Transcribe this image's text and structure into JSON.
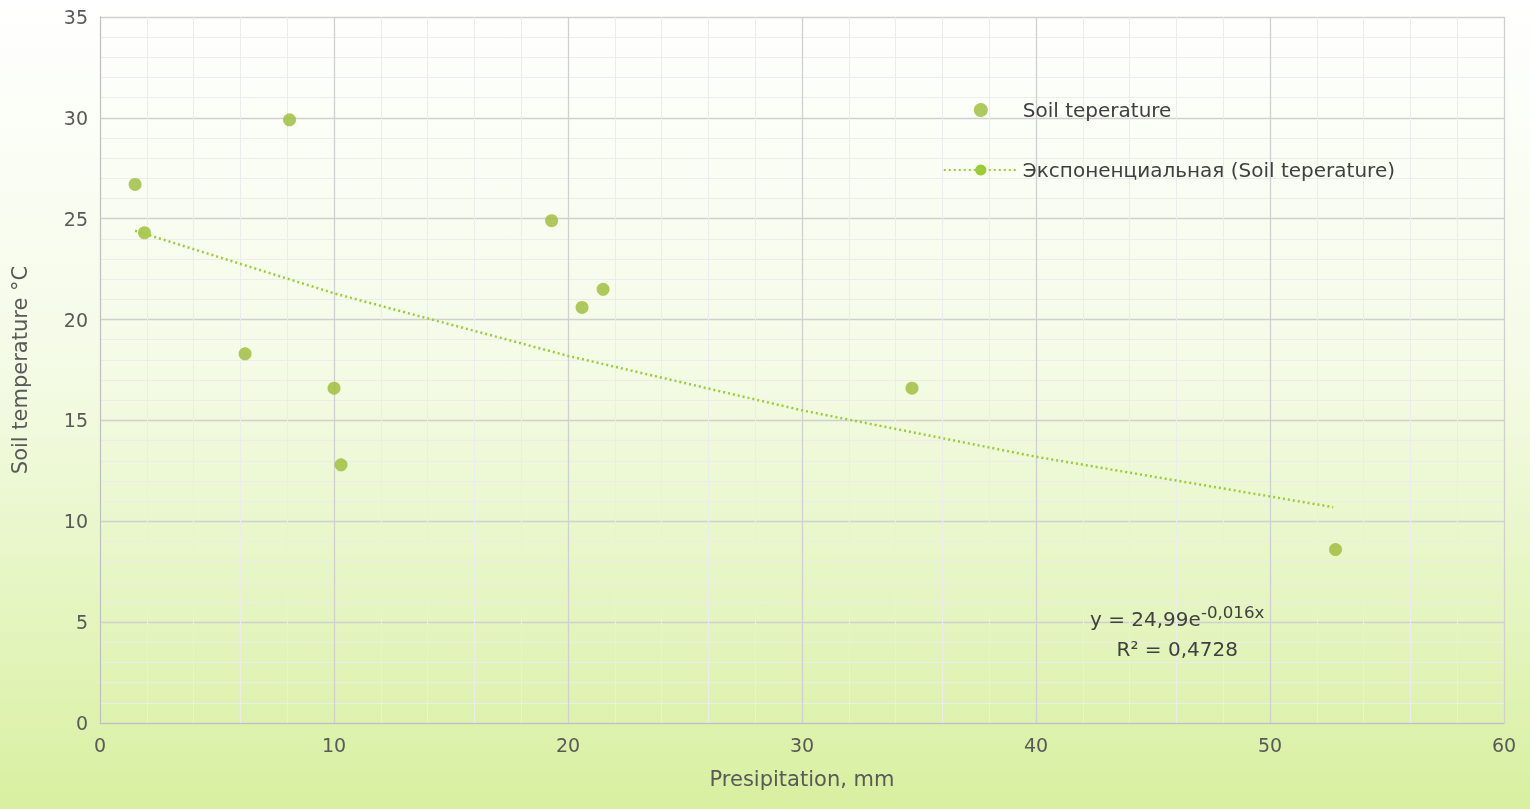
{
  "chart_data": {
    "type": "scatter",
    "xlabel": "Presipitation, mm",
    "ylabel": "Soil temperature °C",
    "xlim": [
      0,
      60
    ],
    "xticks": [
      0,
      10,
      20,
      30,
      40,
      50,
      60
    ],
    "ylim": [
      0,
      35
    ],
    "yticks": [
      0,
      5,
      10,
      15,
      20,
      25,
      30,
      35
    ],
    "grid": true,
    "legend": "top right",
    "marker": "circle",
    "series": [
      {
        "name": "Soil teperature",
        "color": "#9bbb35",
        "x": [
          1.5,
          1.9,
          6.2,
          8.1,
          10.0,
          10.3,
          19.3,
          20.6,
          21.5,
          34.7,
          52.8
        ],
        "values": [
          26.7,
          24.3,
          18.3,
          29.9,
          16.6,
          12.8,
          24.9,
          20.6,
          21.5,
          16.6,
          8.6
        ]
      },
      {
        "name": "Экспоненциальная (Soil teperature)",
        "type": "line",
        "color": "#9acd32",
        "line_style": "dotted",
        "marker": "none",
        "x": [
          1.5,
          10,
          20,
          30,
          40,
          52.7
        ],
        "values": [
          24.4,
          21.3,
          18.2,
          15.5,
          13.2,
          10.7
        ]
      }
    ],
    "annotations": [
      "y = 24,99e$^{-0,016x}$",
      "R² = 0,4728"
    ]
  }
}
